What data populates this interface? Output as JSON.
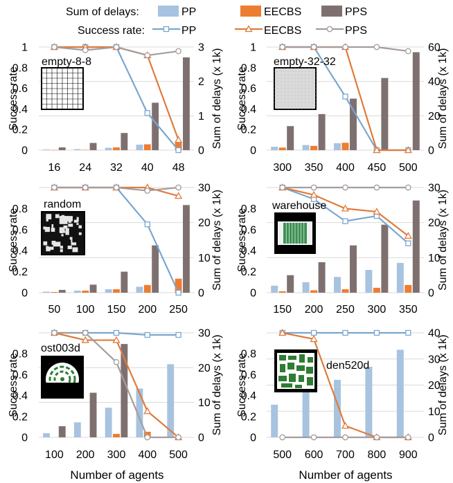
{
  "legend": {
    "bars_title": "Sum of delays:",
    "lines_title": "Success rate:",
    "entries": [
      "PP",
      "EECBS",
      "PPS"
    ]
  },
  "colors": {
    "PP_bar": "#a7c3df",
    "EECBS_bar": "#ed7d31",
    "PPS_bar": "#7f7070",
    "PP_line": "#7aa6cf",
    "EECBS_line": "#e07b3a",
    "PPS_line": "#a59c9c",
    "grid": "#d9d9d9"
  },
  "axis_labels": {
    "left": "Success rate",
    "right": "Sum of delays (x 1k)",
    "x": "Number of agents"
  },
  "chart_data": [
    {
      "type": "bar+line",
      "map": "empty-8-8",
      "categories": [
        "16",
        "24",
        "32",
        "40",
        "48"
      ],
      "success_ylim": [
        0,
        1
      ],
      "success_ticks": [
        "0",
        "0.2",
        "0.4",
        "0.6",
        "0.8",
        "1"
      ],
      "delay_ylim": [
        0,
        3
      ],
      "delay_ticks": [
        "0",
        "1",
        "2",
        "3"
      ],
      "delays": {
        "PP": [
          0.02,
          0.03,
          0.07,
          0.16,
          0
        ],
        "EECBS": [
          0.005,
          0.01,
          0.08,
          0.17,
          0.22
        ],
        "PPS": [
          0.08,
          0.21,
          0.5,
          1.38,
          2.7
        ]
      },
      "success": {
        "PP": [
          1,
          1,
          1,
          0.36,
          0
        ],
        "EECBS": [
          1,
          1,
          1,
          0.92,
          0.1
        ],
        "PPS": [
          1,
          0.97,
          1,
          0.92,
          0.96
        ]
      },
      "grid": true
    },
    {
      "type": "bar+line",
      "map": "empty-32-32",
      "categories": [
        "300",
        "350",
        "400",
        "450",
        "500"
      ],
      "success_ylim": [
        0,
        1
      ],
      "success_ticks": [
        "0",
        "0.2",
        "0.4",
        "0.6",
        "0.8",
        "1"
      ],
      "delay_ylim": [
        0,
        60
      ],
      "delay_ticks": [
        "0",
        "20",
        "40",
        "60"
      ],
      "delays": {
        "PP": [
          2,
          3,
          4,
          0,
          0
        ],
        "EECBS": [
          1.5,
          2.5,
          4.3,
          0,
          0
        ],
        "PPS": [
          14,
          21,
          30,
          42,
          57
        ]
      },
      "success": {
        "PP": [
          1,
          1,
          0.52,
          0,
          0
        ],
        "EECBS": [
          1,
          1,
          1,
          0,
          0
        ],
        "PPS": [
          1,
          1,
          1,
          1,
          0.96
        ]
      },
      "grid": true
    },
    {
      "type": "bar+line",
      "map": "random",
      "categories": [
        "50",
        "100",
        "150",
        "200",
        "250"
      ],
      "success_ylim": [
        0,
        1
      ],
      "success_ticks": [
        "0",
        "0.2",
        "0.4",
        "0.6",
        "0.8"
      ],
      "delay_ylim": [
        0,
        30
      ],
      "delay_ticks": [
        "0",
        "10",
        "20",
        "30"
      ],
      "delays": {
        "PP": [
          0.3,
          0.6,
          1,
          1.7,
          0
        ],
        "EECBS": [
          0.2,
          0.6,
          1,
          2.2,
          4
        ],
        "PPS": [
          0.8,
          2.3,
          6,
          13.5,
          25
        ]
      },
      "success": {
        "PP": [
          1,
          1,
          1,
          0.65,
          0
        ],
        "EECBS": [
          1,
          1,
          1,
          1,
          0.92
        ],
        "PPS": [
          1,
          1,
          1,
          0.97,
          1
        ]
      },
      "grid": true
    },
    {
      "type": "bar+line",
      "map": "warehouse",
      "categories": [
        "150",
        "200",
        "250",
        "300",
        "350"
      ],
      "success_ylim": [
        0,
        1
      ],
      "success_ticks": [
        "0",
        "0.2",
        "0.4",
        "0.6",
        "0.8"
      ],
      "delay_ylim": [
        0,
        30
      ],
      "delay_ticks": [
        "0",
        "10",
        "20",
        "30"
      ],
      "delays": {
        "PP": [
          2,
          3,
          4.5,
          6.5,
          8.5
        ],
        "EECBS": [
          0.4,
          0.7,
          1,
          1.4,
          2.2
        ],
        "PPS": [
          5,
          8.7,
          13.5,
          19.4,
          26.3
        ]
      },
      "success": {
        "PP": [
          1,
          0.89,
          0.68,
          0.73,
          0.47
        ],
        "EECBS": [
          1,
          0.93,
          0.8,
          0.77,
          0.54
        ],
        "PPS": [
          1,
          1,
          1,
          1,
          1
        ]
      },
      "grid": true
    },
    {
      "type": "bar+line",
      "map": "ost003d",
      "categories": [
        "100",
        "200",
        "300",
        "400",
        "500"
      ],
      "success_ylim": [
        0,
        1
      ],
      "success_ticks": [
        "0",
        "0.2",
        "0.4",
        "0.6",
        "0.8"
      ],
      "delay_ylim": [
        0,
        30
      ],
      "delay_ticks": [
        "0",
        "10",
        "20",
        "30"
      ],
      "delays": {
        "PP": [
          1.2,
          4.3,
          8.5,
          14,
          21
        ],
        "EECBS": [
          0,
          0,
          1,
          1.6,
          0
        ],
        "PPS": [
          3.2,
          12.8,
          26.8,
          0,
          0
        ]
      },
      "success": {
        "PP": [
          1,
          1,
          1,
          0.98,
          0.98
        ],
        "EECBS": [
          1,
          0.93,
          0.93,
          0.25,
          0
        ],
        "PPS": [
          1,
          1,
          0.72,
          0,
          0
        ]
      },
      "grid": true
    },
    {
      "type": "bar+line",
      "map": "den520d",
      "categories": [
        "500",
        "600",
        "700",
        "800",
        "900"
      ],
      "success_ylim": [
        0,
        1
      ],
      "success_ticks": [
        "0",
        "0.2",
        "0.4",
        "0.6",
        "0.8"
      ],
      "delay_ylim": [
        0,
        40
      ],
      "delay_ticks": [
        "0",
        "10",
        "20",
        "30",
        "40"
      ],
      "delays": {
        "PP": [
          12.5,
          17.5,
          22,
          27,
          33.5
        ],
        "EECBS": [
          0,
          0,
          0,
          0,
          0
        ],
        "PPS": [
          0,
          0,
          0,
          0,
          0
        ]
      },
      "success": {
        "PP": [
          1,
          1,
          1,
          1,
          1
        ],
        "EECBS": [
          1,
          0.94,
          0.11,
          0,
          0
        ],
        "PPS": [
          0,
          0,
          0,
          0,
          0
        ]
      },
      "grid": true
    }
  ]
}
